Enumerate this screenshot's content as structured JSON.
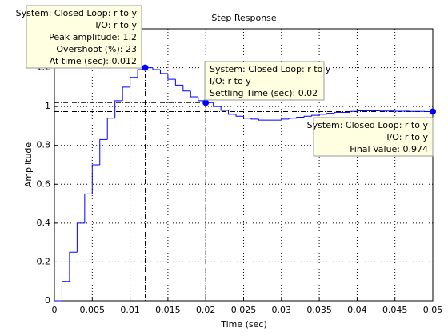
{
  "chart_data": {
    "type": "stairs",
    "title": "Step Response",
    "x_label": "Time (sec)",
    "y_label": "Amplitude",
    "x": [
      0,
      0.001,
      0.002,
      0.003,
      0.004,
      0.005,
      0.006,
      0.007,
      0.008,
      0.009,
      0.01,
      0.011,
      0.012,
      0.013,
      0.014,
      0.015,
      0.016,
      0.017,
      0.018,
      0.019,
      0.02,
      0.021,
      0.022,
      0.023,
      0.024,
      0.025,
      0.026,
      0.027,
      0.028,
      0.029,
      0.03,
      0.031,
      0.032,
      0.033,
      0.034,
      0.035,
      0.036,
      0.037,
      0.038,
      0.039,
      0.04,
      0.041,
      0.042,
      0.043,
      0.044,
      0.045,
      0.046,
      0.047,
      0.048,
      0.049,
      0.05
    ],
    "values": [
      0,
      0.1,
      0.25,
      0.4,
      0.55,
      0.7,
      0.83,
      0.94,
      1.03,
      1.1,
      1.15,
      1.19,
      1.2,
      1.19,
      1.17,
      1.14,
      1.11,
      1.08,
      1.05,
      1.03,
      1.02,
      1.0,
      0.98,
      0.96,
      0.95,
      0.94,
      0.935,
      0.93,
      0.93,
      0.93,
      0.935,
      0.94,
      0.945,
      0.95,
      0.955,
      0.96,
      0.965,
      0.97,
      0.97,
      0.975,
      0.978,
      0.978,
      0.978,
      0.977,
      0.977,
      0.976,
      0.976,
      0.975,
      0.975,
      0.974,
      0.974
    ],
    "color": "#0000ff",
    "xlim": [
      0,
      0.05
    ],
    "xticks": [
      0,
      0.005,
      0.01,
      0.015,
      0.02,
      0.025,
      0.03,
      0.035,
      0.04,
      0.045,
      0.05
    ],
    "ylim": [
      0,
      1.4
    ],
    "yticks": [
      0,
      0.2,
      0.4,
      0.6,
      0.8,
      1,
      1.2
    ],
    "grid": true,
    "annotations": [
      {
        "lines": [
          "System: Closed Loop: r to y",
          "I/O: r to y",
          "Peak amplitude: 1.2",
          "Overshoot (%): 23",
          "At time (sec): 0.012"
        ]
      },
      {
        "lines": [
          "System: Closed Loop: r to y",
          "I/O: r to y",
          "Settling Time (sec): 0.02"
        ]
      },
      {
        "lines": [
          "System: Closed Loop: r to y",
          "I/O: r to y",
          "Final Value: 0.974"
        ]
      }
    ]
  }
}
